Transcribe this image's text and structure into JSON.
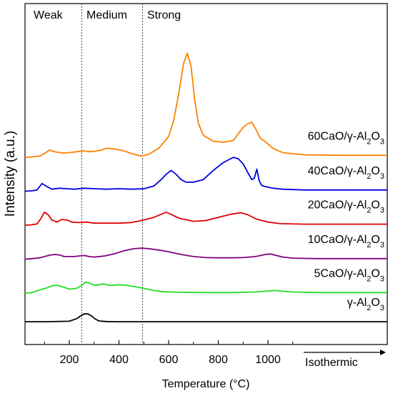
{
  "chart_data": {
    "type": "line",
    "xlabel": "Temperature (°C)",
    "ylabel": "Intensity (a.u.)",
    "xlim": [
      20,
      1500
    ],
    "x_ticks": [
      200,
      400,
      600,
      800,
      1000
    ],
    "isothermic_label": "Isothermic",
    "regions": [
      {
        "label": "Weak",
        "start": 20,
        "end": 250
      },
      {
        "label": "Medium",
        "start": 250,
        "end": 495
      },
      {
        "label": "Strong",
        "start": 495,
        "end": 1500
      }
    ],
    "series": [
      {
        "label_prefix": "60CaO/γ-Al",
        "label_sub1": "2",
        "label_mid": "O",
        "label_sub2": "3",
        "color": "#ff8000",
        "offset": 5.2,
        "x": [
          20,
          50,
          80,
          100,
          120,
          140,
          170,
          200,
          230,
          260,
          280,
          300,
          330,
          350,
          380,
          420,
          460,
          490,
          520,
          560,
          600,
          620,
          640,
          660,
          675,
          690,
          705,
          720,
          740,
          780,
          820,
          860,
          880,
          900,
          920,
          935,
          950,
          970,
          990,
          1020,
          1060,
          1150,
          1300,
          1500
        ],
        "y": [
          0,
          0.02,
          0.05,
          0.15,
          0.28,
          0.22,
          0.17,
          0.18,
          0.22,
          0.25,
          0.22,
          0.23,
          0.28,
          0.35,
          0.33,
          0.25,
          0.12,
          0.05,
          0.12,
          0.35,
          0.8,
          1.4,
          2.4,
          3.6,
          4.0,
          3.5,
          2.2,
          1.3,
          0.85,
          0.62,
          0.58,
          0.65,
          0.9,
          1.15,
          1.3,
          1.35,
          1.1,
          0.72,
          0.6,
          0.35,
          0.18,
          0.1,
          0.08,
          0.08
        ]
      },
      {
        "label_prefix": "40CaO/γ-Al",
        "label_sub1": "2",
        "label_mid": "O",
        "label_sub2": "3",
        "color": "#0000e0",
        "offset": 3.9,
        "x": [
          20,
          50,
          70,
          90,
          110,
          130,
          160,
          190,
          220,
          260,
          300,
          350,
          400,
          450,
          500,
          540,
          570,
          590,
          610,
          630,
          650,
          670,
          700,
          740,
          780,
          820,
          860,
          880,
          900,
          920,
          935,
          945,
          955,
          965,
          975,
          990,
          1020,
          1060,
          1150,
          1300,
          1500
        ],
        "y": [
          0,
          0.02,
          0.05,
          0.3,
          0.18,
          0.08,
          0.12,
          0.1,
          0.08,
          0.12,
          0.1,
          0.08,
          0.1,
          0.08,
          0.1,
          0.2,
          0.45,
          0.65,
          0.8,
          0.65,
          0.45,
          0.35,
          0.35,
          0.45,
          0.8,
          1.1,
          1.3,
          1.25,
          1.05,
          0.7,
          0.45,
          0.5,
          0.85,
          0.4,
          0.22,
          0.18,
          0.12,
          0.08,
          0.05,
          0.05,
          0.05
        ]
      },
      {
        "label_prefix": "20CaO/γ-Al",
        "label_sub1": "2",
        "label_mid": "O",
        "label_sub2": "3",
        "color": "#e00000",
        "offset": 2.6,
        "x": [
          20,
          50,
          70,
          85,
          100,
          115,
          130,
          150,
          170,
          190,
          210,
          240,
          270,
          300,
          350,
          400,
          450,
          500,
          540,
          570,
          590,
          610,
          630,
          650,
          700,
          750,
          800,
          850,
          890,
          920,
          950,
          1000,
          1050,
          1150,
          1300,
          1500
        ],
        "y": [
          0,
          0.02,
          0.05,
          0.25,
          0.5,
          0.4,
          0.2,
          0.12,
          0.22,
          0.2,
          0.12,
          0.1,
          0.12,
          0.08,
          0.08,
          0.08,
          0.1,
          0.2,
          0.3,
          0.42,
          0.5,
          0.42,
          0.32,
          0.25,
          0.15,
          0.18,
          0.3,
          0.42,
          0.48,
          0.4,
          0.25,
          0.12,
          0.06,
          0.04,
          0.04,
          0.04
        ]
      },
      {
        "label_prefix": "10CaO/γ-Al",
        "label_sub1": "2",
        "label_mid": "O",
        "label_sub2": "3",
        "color": "#800080",
        "offset": 1.3,
        "x": [
          20,
          50,
          80,
          100,
          120,
          140,
          160,
          180,
          220,
          260,
          280,
          300,
          340,
          380,
          420,
          460,
          490,
          520,
          560,
          600,
          650,
          700,
          750,
          800,
          850,
          900,
          950,
          990,
          1010,
          1030,
          1060,
          1100,
          1200,
          1300,
          1500
        ],
        "y": [
          0,
          0.02,
          0.05,
          0.1,
          0.15,
          0.18,
          0.16,
          0.1,
          0.1,
          0.14,
          0.1,
          0.08,
          0.12,
          0.2,
          0.32,
          0.4,
          0.42,
          0.4,
          0.35,
          0.28,
          0.18,
          0.1,
          0.06,
          0.05,
          0.05,
          0.06,
          0.1,
          0.18,
          0.2,
          0.15,
          0.08,
          0.04,
          0.02,
          0.02,
          0.02
        ]
      },
      {
        "label_prefix": "5CaO/γ-Al",
        "label_sub1": "2",
        "label_mid": "O",
        "label_sub2": "3",
        "color": "#22dd22",
        "offset": 0.0,
        "x": [
          20,
          50,
          80,
          110,
          130,
          150,
          180,
          200,
          230,
          250,
          265,
          280,
          300,
          320,
          340,
          360,
          380,
          400,
          430,
          460,
          500,
          540,
          580,
          650,
          750,
          850,
          950,
          1000,
          1030,
          1060,
          1100,
          1200,
          1300,
          1500
        ],
        "y": [
          0,
          0.02,
          0.12,
          0.2,
          0.28,
          0.3,
          0.22,
          0.15,
          0.18,
          0.3,
          0.42,
          0.38,
          0.3,
          0.32,
          0.35,
          0.3,
          0.3,
          0.32,
          0.3,
          0.25,
          0.18,
          0.1,
          0.05,
          0.03,
          0.02,
          0.02,
          0.04,
          0.08,
          0.1,
          0.07,
          0.04,
          0.02,
          0.02,
          0.02
        ]
      },
      {
        "label_prefix": "γ-Al",
        "label_sub1": "2",
        "label_mid": "O",
        "label_sub2": "3",
        "color": "#000000",
        "offset": -1.1,
        "x": [
          20,
          100,
          200,
          230,
          245,
          260,
          275,
          290,
          305,
          320,
          350,
          400,
          500,
          700,
          1000,
          1500
        ],
        "y": [
          0,
          0,
          0.02,
          0.12,
          0.22,
          0.3,
          0.3,
          0.22,
          0.1,
          0.03,
          0.01,
          0,
          0,
          0,
          0,
          0
        ]
      }
    ]
  }
}
